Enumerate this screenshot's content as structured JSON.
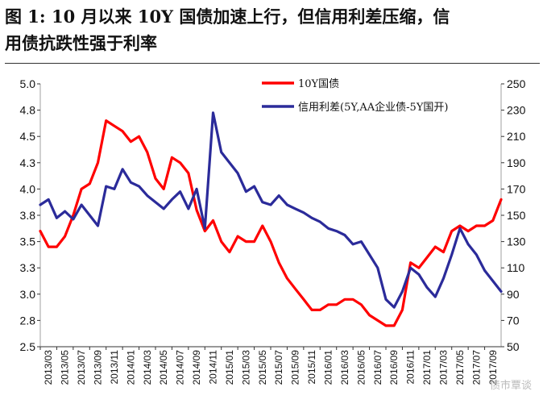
{
  "title": {
    "line1": "图 1:  10 月以来 10Y 国债加速上行，但信用利差压缩，信",
    "line2": "用债抗跌性强于利率"
  },
  "watermark": "债市覃谈",
  "colors": {
    "series1": "#ff0000",
    "series2": "#2b2b9a"
  },
  "chart_data": {
    "type": "line",
    "legend_position": "top-right",
    "grid": false,
    "x_tick_labels": [
      "2013/03",
      "2013/05",
      "2013/07",
      "2013/09",
      "2013/11",
      "2014/01",
      "2014/03",
      "2014/05",
      "2014/07",
      "2014/09",
      "2014/11",
      "2015/01",
      "2015/03",
      "2015/05",
      "2015/07",
      "2015/09",
      "2015/11",
      "2016/01",
      "2016/03",
      "2016/05",
      "2016/07",
      "2016/09",
      "2016/11",
      "2017/01",
      "2017/03",
      "2017/05",
      "2017/07",
      "2017/09"
    ],
    "y_left": {
      "ylim": [
        2.5,
        5.0
      ],
      "ticks": [
        "5.0",
        "4.8",
        "4.5",
        "4.3",
        "4.0",
        "3.8",
        "3.5",
        "3.3",
        "3.0",
        "2.8",
        "2.5"
      ]
    },
    "y_right": {
      "ylim": [
        50,
        250
      ],
      "ticks": [
        "250",
        "230",
        "210",
        "190",
        "170",
        "150",
        "130",
        "110",
        "90",
        "70",
        "50"
      ]
    },
    "series": [
      {
        "name": "10Y国债",
        "axis": "left",
        "x": [
          "2013/03",
          "2013/04",
          "2013/05",
          "2013/06",
          "2013/07",
          "2013/08",
          "2013/09",
          "2013/10",
          "2013/11",
          "2013/12",
          "2014/01",
          "2014/02",
          "2014/03",
          "2014/04",
          "2014/05",
          "2014/06",
          "2014/07",
          "2014/08",
          "2014/09",
          "2014/10",
          "2014/11",
          "2014/12",
          "2015/01",
          "2015/02",
          "2015/03",
          "2015/04",
          "2015/05",
          "2015/06",
          "2015/07",
          "2015/08",
          "2015/09",
          "2015/10",
          "2015/11",
          "2015/12",
          "2016/01",
          "2016/02",
          "2016/03",
          "2016/04",
          "2016/05",
          "2016/06",
          "2016/07",
          "2016/08",
          "2016/09",
          "2016/10",
          "2016/11",
          "2016/12",
          "2017/01",
          "2017/02",
          "2017/03",
          "2017/04",
          "2017/05",
          "2017/06",
          "2017/07",
          "2017/08",
          "2017/09",
          "2017/10",
          "2017/11"
        ],
        "values": [
          3.6,
          3.45,
          3.45,
          3.55,
          3.75,
          4.0,
          4.05,
          4.25,
          4.65,
          4.6,
          4.55,
          4.45,
          4.5,
          4.35,
          4.1,
          4.0,
          4.3,
          4.25,
          4.15,
          3.8,
          3.6,
          3.7,
          3.5,
          3.4,
          3.55,
          3.5,
          3.5,
          3.65,
          3.5,
          3.3,
          3.15,
          3.05,
          2.95,
          2.85,
          2.85,
          2.9,
          2.9,
          2.95,
          2.95,
          2.9,
          2.8,
          2.75,
          2.7,
          2.7,
          2.85,
          3.3,
          3.25,
          3.35,
          3.45,
          3.4,
          3.6,
          3.65,
          3.6,
          3.65,
          3.65,
          3.7,
          3.9
        ]
      },
      {
        "name": "信用利差(5Y,AA企业债-5Y国开)",
        "axis": "right",
        "x": [
          "2013/03",
          "2013/04",
          "2013/05",
          "2013/06",
          "2013/07",
          "2013/08",
          "2013/09",
          "2013/10",
          "2013/11",
          "2013/12",
          "2014/01",
          "2014/02",
          "2014/03",
          "2014/04",
          "2014/05",
          "2014/06",
          "2014/07",
          "2014/08",
          "2014/09",
          "2014/10",
          "2014/11",
          "2014/12",
          "2015/01",
          "2015/02",
          "2015/03",
          "2015/04",
          "2015/05",
          "2015/06",
          "2015/07",
          "2015/08",
          "2015/09",
          "2015/10",
          "2015/11",
          "2015/12",
          "2016/01",
          "2016/02",
          "2016/03",
          "2016/04",
          "2016/05",
          "2016/06",
          "2016/07",
          "2016/08",
          "2016/09",
          "2016/10",
          "2016/11",
          "2016/12",
          "2017/01",
          "2017/02",
          "2017/03",
          "2017/04",
          "2017/05",
          "2017/06",
          "2017/07",
          "2017/08",
          "2017/09",
          "2017/10",
          "2017/11"
        ],
        "values": [
          158,
          162,
          148,
          153,
          147,
          158,
          150,
          142,
          172,
          170,
          185,
          175,
          172,
          165,
          160,
          155,
          162,
          168,
          155,
          170,
          140,
          228,
          198,
          190,
          182,
          168,
          172,
          160,
          158,
          165,
          158,
          155,
          152,
          148,
          145,
          140,
          138,
          135,
          128,
          130,
          120,
          110,
          86,
          80,
          92,
          110,
          105,
          95,
          88,
          102,
          120,
          140,
          128,
          120,
          108,
          100,
          92
        ]
      }
    ]
  }
}
